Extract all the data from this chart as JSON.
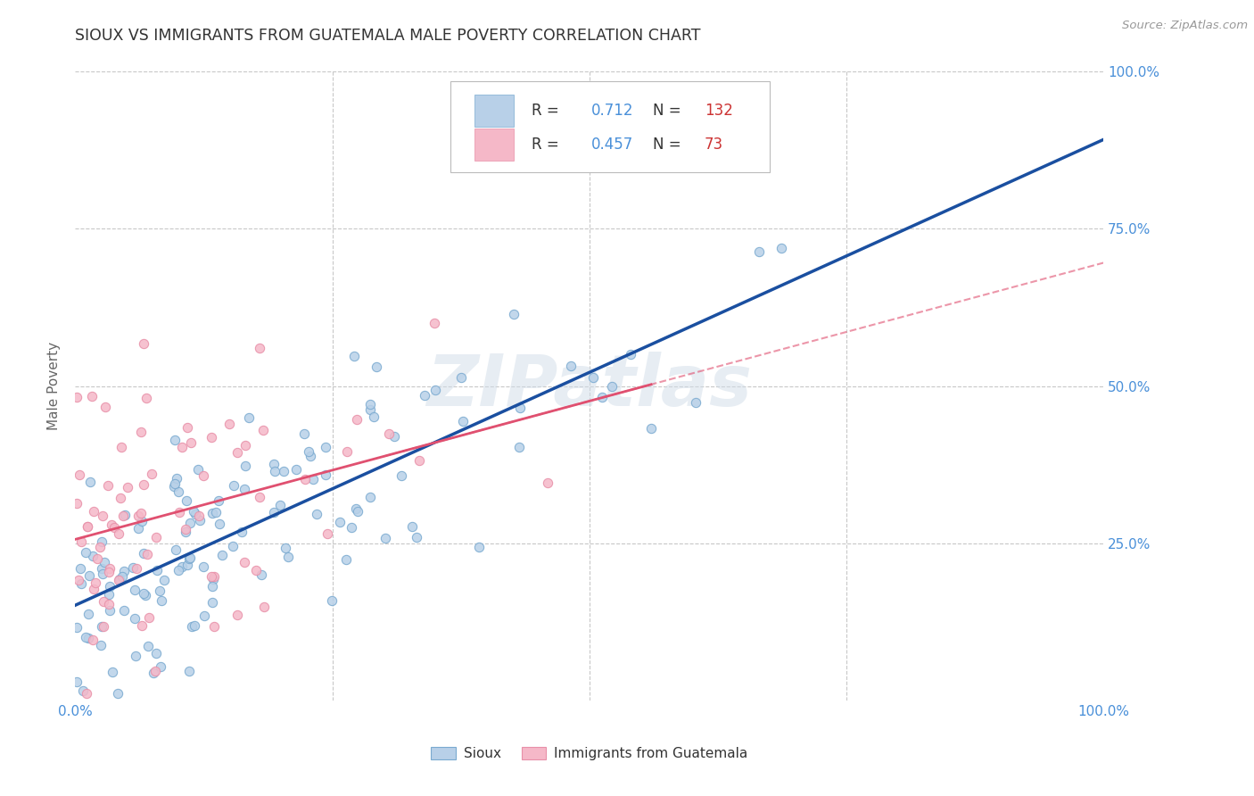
{
  "title": "SIOUX VS IMMIGRANTS FROM GUATEMALA MALE POVERTY CORRELATION CHART",
  "source": "Source: ZipAtlas.com",
  "ylabel": "Male Poverty",
  "legend1_label": "Sioux",
  "legend2_label": "Immigrants from Guatemala",
  "R1": 0.712,
  "N1": 132,
  "R2": 0.457,
  "N2": 73,
  "blue_fill": "#b8d0e8",
  "blue_edge": "#7aaad0",
  "pink_fill": "#f5b8c8",
  "pink_edge": "#e890a8",
  "blue_line_color": "#1a4fa0",
  "pink_line_color": "#e05070",
  "watermark_color": "#d0dce8",
  "background_color": "#ffffff",
  "grid_color": "#c8c8c8",
  "title_color": "#333333",
  "axis_tick_color": "#4a90d9",
  "legend_R_color": "#333333",
  "legend_val_color": "#4a90d9",
  "legend_N_color": "#4a90d9",
  "legend_Nval_color": "#cc3333"
}
